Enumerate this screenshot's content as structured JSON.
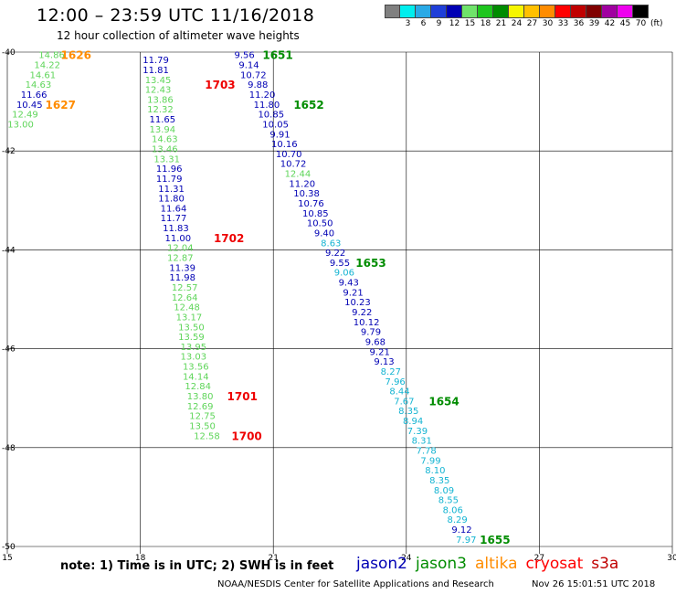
{
  "title": "12:00 – 23:59 UTC 11/16/2018",
  "subtitle": "12 hour collection of altimeter wave heights",
  "legend": {
    "unit": "(ft)",
    "swatches": [
      {
        "color": "#808080",
        "label": ""
      },
      {
        "color": "#00eeee",
        "label": "3"
      },
      {
        "color": "#29a9e6",
        "label": "6"
      },
      {
        "color": "#1f3fd9",
        "label": "9"
      },
      {
        "color": "#0000b4",
        "label": "12"
      },
      {
        "color": "#6fe36a",
        "label": "15"
      },
      {
        "color": "#1ec61e",
        "label": "18"
      },
      {
        "color": "#008c00",
        "label": "21"
      },
      {
        "color": "#f6f600",
        "label": "24"
      },
      {
        "color": "#ffc000",
        "label": "27"
      },
      {
        "color": "#ff8c00",
        "label": "30"
      },
      {
        "color": "#ff0000",
        "label": "33"
      },
      {
        "color": "#c00000",
        "label": "36"
      },
      {
        "color": "#800000",
        "label": "39"
      },
      {
        "color": "#a000a0",
        "label": "42"
      },
      {
        "color": "#ee00ee",
        "label": "45"
      },
      {
        "color": "#000000",
        "label": "70"
      }
    ]
  },
  "chart_data": {
    "type": "scatter",
    "title": "12:00 – 23:59 UTC 11/16/2018",
    "xlim": [
      15,
      30
    ],
    "ylim": [
      -50,
      -40
    ],
    "x_ticks": [
      15,
      18,
      21,
      24,
      27,
      30
    ],
    "y_ticks": [
      -40,
      -42,
      -44,
      -46,
      -48,
      -50
    ],
    "grid": true,
    "series": [
      {
        "name": "jason2",
        "color": "#0000b4"
      },
      {
        "name": "jason3",
        "color": "#008c00"
      },
      {
        "name": "altika",
        "color": "#ff8c00"
      },
      {
        "name": "cryosat",
        "color": "#ff0000"
      },
      {
        "name": "s3a",
        "color": "#c00000"
      }
    ],
    "value_colors": {
      "cyan": "#14b4d2",
      "blue": "#0000b4",
      "lgreen": "#5fd55a"
    },
    "points": [
      {
        "x": 16.0,
        "y": -40.05,
        "v": "14.86",
        "c": "lgreen"
      },
      {
        "x": 15.9,
        "y": -40.25,
        "v": "14.22",
        "c": "lgreen"
      },
      {
        "x": 15.8,
        "y": -40.45,
        "v": "14.61",
        "c": "lgreen"
      },
      {
        "x": 15.7,
        "y": -40.65,
        "v": "14.63",
        "c": "lgreen"
      },
      {
        "x": 15.6,
        "y": -40.85,
        "v": "11.66",
        "c": "blue"
      },
      {
        "x": 15.5,
        "y": -41.05,
        "v": "10.45",
        "c": "blue"
      },
      {
        "x": 15.4,
        "y": -41.25,
        "v": "12.49",
        "c": "lgreen"
      },
      {
        "x": 15.3,
        "y": -41.45,
        "v": "13.00",
        "c": "lgreen"
      },
      {
        "x": 18.35,
        "y": -40.15,
        "v": "11.79",
        "c": "blue"
      },
      {
        "x": 18.35,
        "y": -40.35,
        "v": "11.81",
        "c": "blue"
      },
      {
        "x": 18.4,
        "y": -40.55,
        "v": "13.45",
        "c": "lgreen"
      },
      {
        "x": 18.4,
        "y": -40.75,
        "v": "12.43",
        "c": "lgreen"
      },
      {
        "x": 18.45,
        "y": -40.95,
        "v": "13.86",
        "c": "lgreen"
      },
      {
        "x": 18.45,
        "y": -41.15,
        "v": "12.32",
        "c": "lgreen"
      },
      {
        "x": 18.5,
        "y": -41.35,
        "v": "11.65",
        "c": "blue"
      },
      {
        "x": 18.5,
        "y": -41.55,
        "v": "13.94",
        "c": "lgreen"
      },
      {
        "x": 18.55,
        "y": -41.75,
        "v": "14.63",
        "c": "lgreen"
      },
      {
        "x": 18.55,
        "y": -41.95,
        "v": "13.46",
        "c": "lgreen"
      },
      {
        "x": 18.6,
        "y": -42.15,
        "v": "13.31",
        "c": "lgreen"
      },
      {
        "x": 18.65,
        "y": -42.35,
        "v": "11.96",
        "c": "blue"
      },
      {
        "x": 18.65,
        "y": -42.55,
        "v": "11.79",
        "c": "blue"
      },
      {
        "x": 18.7,
        "y": -42.75,
        "v": "11.31",
        "c": "blue"
      },
      {
        "x": 18.7,
        "y": -42.95,
        "v": "11.80",
        "c": "blue"
      },
      {
        "x": 18.75,
        "y": -43.15,
        "v": "11.64",
        "c": "blue"
      },
      {
        "x": 18.75,
        "y": -43.35,
        "v": "11.77",
        "c": "blue"
      },
      {
        "x": 18.8,
        "y": -43.55,
        "v": "11.83",
        "c": "blue"
      },
      {
        "x": 18.85,
        "y": -43.75,
        "v": "11.00",
        "c": "blue"
      },
      {
        "x": 18.9,
        "y": -43.95,
        "v": "12.04",
        "c": "lgreen"
      },
      {
        "x": 18.9,
        "y": -44.15,
        "v": "12.87",
        "c": "lgreen"
      },
      {
        "x": 18.95,
        "y": -44.35,
        "v": "11.39",
        "c": "blue"
      },
      {
        "x": 18.95,
        "y": -44.55,
        "v": "11.98",
        "c": "blue"
      },
      {
        "x": 19.0,
        "y": -44.75,
        "v": "12.57",
        "c": "lgreen"
      },
      {
        "x": 19.0,
        "y": -44.95,
        "v": "12.64",
        "c": "lgreen"
      },
      {
        "x": 19.05,
        "y": -45.15,
        "v": "12.48",
        "c": "lgreen"
      },
      {
        "x": 19.1,
        "y": -45.35,
        "v": "13.17",
        "c": "lgreen"
      },
      {
        "x": 19.15,
        "y": -45.55,
        "v": "13.50",
        "c": "lgreen"
      },
      {
        "x": 19.15,
        "y": -45.75,
        "v": "13.59",
        "c": "lgreen"
      },
      {
        "x": 19.2,
        "y": -45.95,
        "v": "13.95",
        "c": "lgreen"
      },
      {
        "x": 19.2,
        "y": -46.15,
        "v": "13.03",
        "c": "lgreen"
      },
      {
        "x": 19.25,
        "y": -46.35,
        "v": "13.56",
        "c": "lgreen"
      },
      {
        "x": 19.25,
        "y": -46.55,
        "v": "14.14",
        "c": "lgreen"
      },
      {
        "x": 19.3,
        "y": -46.75,
        "v": "12.84",
        "c": "lgreen"
      },
      {
        "x": 19.35,
        "y": -46.95,
        "v": "13.80",
        "c": "lgreen"
      },
      {
        "x": 19.35,
        "y": -47.15,
        "v": "12.69",
        "c": "lgreen"
      },
      {
        "x": 19.4,
        "y": -47.35,
        "v": "12.75",
        "c": "lgreen"
      },
      {
        "x": 19.4,
        "y": -47.55,
        "v": "13.50",
        "c": "lgreen"
      },
      {
        "x": 19.5,
        "y": -47.75,
        "v": "12.58",
        "c": "lgreen"
      },
      {
        "x": 20.35,
        "y": -40.05,
        "v": "9.56",
        "c": "blue"
      },
      {
        "x": 20.45,
        "y": -40.25,
        "v": "9.14",
        "c": "blue"
      },
      {
        "x": 20.55,
        "y": -40.45,
        "v": "10.72",
        "c": "blue"
      },
      {
        "x": 20.65,
        "y": -40.65,
        "v": "9.88",
        "c": "blue"
      },
      {
        "x": 20.75,
        "y": -40.85,
        "v": "11.20",
        "c": "blue"
      },
      {
        "x": 20.85,
        "y": -41.05,
        "v": "11.80",
        "c": "blue"
      },
      {
        "x": 20.95,
        "y": -41.25,
        "v": "10.85",
        "c": "blue"
      },
      {
        "x": 21.05,
        "y": -41.45,
        "v": "10.05",
        "c": "blue"
      },
      {
        "x": 21.15,
        "y": -41.65,
        "v": "9.91",
        "c": "blue"
      },
      {
        "x": 21.25,
        "y": -41.85,
        "v": "10.16",
        "c": "blue"
      },
      {
        "x": 21.35,
        "y": -42.05,
        "v": "10.70",
        "c": "blue"
      },
      {
        "x": 21.45,
        "y": -42.25,
        "v": "10.72",
        "c": "blue"
      },
      {
        "x": 21.55,
        "y": -42.45,
        "v": "12.44",
        "c": "lgreen"
      },
      {
        "x": 21.65,
        "y": -42.65,
        "v": "11.20",
        "c": "blue"
      },
      {
        "x": 21.75,
        "y": -42.85,
        "v": "10.38",
        "c": "blue"
      },
      {
        "x": 21.85,
        "y": -43.05,
        "v": "10.76",
        "c": "blue"
      },
      {
        "x": 21.95,
        "y": -43.25,
        "v": "10.85",
        "c": "blue"
      },
      {
        "x": 22.05,
        "y": -43.45,
        "v": "10.50",
        "c": "blue"
      },
      {
        "x": 22.15,
        "y": -43.65,
        "v": "9.40",
        "c": "blue"
      },
      {
        "x": 22.3,
        "y": -43.85,
        "v": "8.63",
        "c": "cyan"
      },
      {
        "x": 22.4,
        "y": -44.05,
        "v": "9.22",
        "c": "blue"
      },
      {
        "x": 22.5,
        "y": -44.25,
        "v": "9.55",
        "c": "blue"
      },
      {
        "x": 22.6,
        "y": -44.45,
        "v": "9.06",
        "c": "cyan"
      },
      {
        "x": 22.7,
        "y": -44.65,
        "v": "9.43",
        "c": "blue"
      },
      {
        "x": 22.8,
        "y": -44.85,
        "v": "9.21",
        "c": "blue"
      },
      {
        "x": 22.9,
        "y": -45.05,
        "v": "10.23",
        "c": "blue"
      },
      {
        "x": 23.0,
        "y": -45.25,
        "v": "9.22",
        "c": "blue"
      },
      {
        "x": 23.1,
        "y": -45.45,
        "v": "10.12",
        "c": "blue"
      },
      {
        "x": 23.2,
        "y": -45.65,
        "v": "9.79",
        "c": "blue"
      },
      {
        "x": 23.3,
        "y": -45.85,
        "v": "9.68",
        "c": "blue"
      },
      {
        "x": 23.4,
        "y": -46.05,
        "v": "9.21",
        "c": "blue"
      },
      {
        "x": 23.5,
        "y": -46.25,
        "v": "9.13",
        "c": "blue"
      },
      {
        "x": 23.65,
        "y": -46.45,
        "v": "8.27",
        "c": "cyan"
      },
      {
        "x": 23.75,
        "y": -46.65,
        "v": "7.96",
        "c": "cyan"
      },
      {
        "x": 23.85,
        "y": -46.85,
        "v": "8.44",
        "c": "cyan"
      },
      {
        "x": 23.95,
        "y": -47.05,
        "v": "7.67",
        "c": "cyan"
      },
      {
        "x": 24.05,
        "y": -47.25,
        "v": "8.35",
        "c": "cyan"
      },
      {
        "x": 24.15,
        "y": -47.45,
        "v": "8.94",
        "c": "cyan"
      },
      {
        "x": 24.25,
        "y": -47.65,
        "v": "7.39",
        "c": "cyan"
      },
      {
        "x": 24.35,
        "y": -47.85,
        "v": "8.31",
        "c": "cyan"
      },
      {
        "x": 24.45,
        "y": -48.05,
        "v": "7.78",
        "c": "cyan"
      },
      {
        "x": 24.55,
        "y": -48.25,
        "v": "7.99",
        "c": "cyan"
      },
      {
        "x": 24.65,
        "y": -48.45,
        "v": "8.10",
        "c": "cyan"
      },
      {
        "x": 24.75,
        "y": -48.65,
        "v": "8.35",
        "c": "cyan"
      },
      {
        "x": 24.85,
        "y": -48.85,
        "v": "8.09",
        "c": "cyan"
      },
      {
        "x": 24.95,
        "y": -49.05,
        "v": "8.55",
        "c": "cyan"
      },
      {
        "x": 25.05,
        "y": -49.25,
        "v": "8.06",
        "c": "cyan"
      },
      {
        "x": 25.15,
        "y": -49.45,
        "v": "8.29",
        "c": "cyan"
      },
      {
        "x": 25.25,
        "y": -49.65,
        "v": "9.12",
        "c": "blue"
      },
      {
        "x": 25.35,
        "y": -49.85,
        "v": "7.97",
        "c": "cyan"
      }
    ],
    "time_labels": [
      {
        "t": "1626",
        "x": 16.55,
        "y": -40.05,
        "c": "orange"
      },
      {
        "t": "1627",
        "x": 16.2,
        "y": -41.05,
        "c": "orange"
      },
      {
        "t": "1703",
        "x": 19.8,
        "y": -40.65,
        "c": "red"
      },
      {
        "t": "1702",
        "x": 20.0,
        "y": -43.75,
        "c": "red"
      },
      {
        "t": "1701",
        "x": 20.3,
        "y": -46.95,
        "c": "red"
      },
      {
        "t": "1700",
        "x": 20.4,
        "y": -47.75,
        "c": "red"
      },
      {
        "t": "1651",
        "x": 21.1,
        "y": -40.05,
        "c": "green"
      },
      {
        "t": "1652",
        "x": 21.8,
        "y": -41.05,
        "c": "green"
      },
      {
        "t": "1653",
        "x": 23.2,
        "y": -44.25,
        "c": "green"
      },
      {
        "t": "1654",
        "x": 24.85,
        "y": -47.05,
        "c": "green"
      },
      {
        "t": "1655",
        "x": 26.0,
        "y": -49.85,
        "c": "green"
      }
    ]
  },
  "note": "note:  1) Time is in UTC;  2) SWH is in feet",
  "satellites": [
    {
      "name": "jason2",
      "color": "#0000b4"
    },
    {
      "name": "jason3",
      "color": "#008c00"
    },
    {
      "name": "altika",
      "color": "#ff8c00"
    },
    {
      "name": "cryosat",
      "color": "#ff0000"
    },
    {
      "name": "s3a",
      "color": "#c00000"
    }
  ],
  "footer": {
    "source": "NOAA/NESDIS Center for Satellite Applications and Research",
    "timestamp": "Nov 26 15:01:51 UTC 2018"
  }
}
